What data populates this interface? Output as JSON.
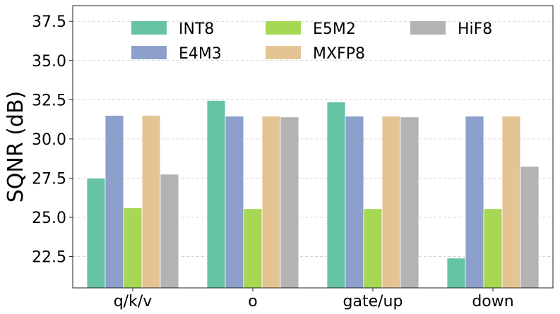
{
  "chart_data": {
    "type": "bar",
    "title": "",
    "xlabel": "",
    "ylabel": "SQNR (dB)",
    "ylim": [
      20.5,
      38.5
    ],
    "yticks": [
      22.5,
      25.0,
      27.5,
      30.0,
      32.5,
      35.0,
      37.5
    ],
    "ytick_labels": [
      "22.5",
      "25.0",
      "27.5",
      "30.0",
      "32.5",
      "35.0",
      "37.5"
    ],
    "categories": [
      "q/k/v",
      "o",
      "gate/up",
      "down"
    ],
    "grid": "horizontal dashed",
    "legend_position": "top",
    "series": [
      {
        "name": "INT8",
        "color": "#66c2a5",
        "values": [
          27.5,
          32.45,
          32.35,
          22.4
        ]
      },
      {
        "name": "E4M3",
        "color": "#8da0cb",
        "values": [
          31.5,
          31.45,
          31.45,
          31.45
        ]
      },
      {
        "name": "E5M2",
        "color": "#a6d854",
        "values": [
          25.6,
          25.55,
          25.55,
          25.55
        ]
      },
      {
        "name": "MXFP8",
        "color": "#e5c494",
        "values": [
          31.5,
          31.45,
          31.45,
          31.45
        ]
      },
      {
        "name": "HiF8",
        "color": "#b3b3b3",
        "values": [
          27.75,
          31.4,
          31.4,
          28.25
        ]
      }
    ]
  }
}
